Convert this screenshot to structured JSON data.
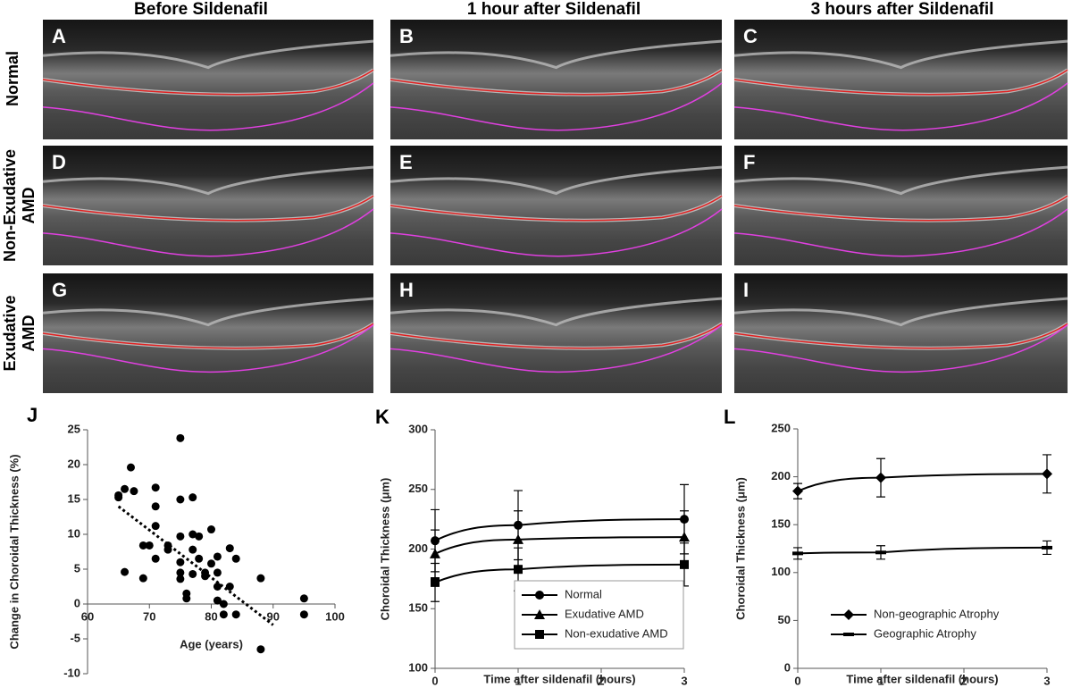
{
  "headers": [
    "Before Sildenafil",
    "1 hour after Sildenafil",
    "3 hours after Sildenafil"
  ],
  "rows": [
    [
      "Normal"
    ],
    [
      "Non-Exudative",
      "AMD"
    ],
    [
      "Exudative",
      "AMD"
    ]
  ],
  "panels": [
    "A",
    "B",
    "C",
    "D",
    "E",
    "F",
    "G",
    "H",
    "I"
  ],
  "chart_data": [
    {
      "type": "scatter",
      "panel": "J",
      "ylabel": "Change in Choroidal Thickness (%)",
      "xlabel": "Age (years)",
      "x": [
        65,
        65,
        66,
        67,
        67.5,
        66,
        69,
        69,
        70,
        71,
        71,
        71,
        71,
        73,
        73,
        75,
        75,
        75,
        75,
        75,
        75,
        76,
        76,
        77,
        77,
        77,
        77,
        78,
        78,
        79,
        80,
        80,
        81,
        81,
        81,
        81,
        82,
        82,
        83,
        83,
        84,
        84,
        88,
        88,
        95,
        95,
        79
      ],
      "values": [
        15.3,
        15.6,
        16.5,
        19.6,
        16.2,
        4.6,
        8.4,
        3.7,
        8.4,
        16.7,
        14,
        11.2,
        6.5,
        8.4,
        7.8,
        23.8,
        15,
        9.7,
        6,
        4.5,
        3.6,
        1.5,
        0.8,
        15.3,
        10,
        7.8,
        4.3,
        9.7,
        6.5,
        4.5,
        10.7,
        5.8,
        6.8,
        4.5,
        2.5,
        0.5,
        0,
        -1.5,
        8,
        2.5,
        6.5,
        -1.5,
        3.7,
        -6.5,
        0.8,
        -1.5,
        4
      ],
      "color": "#000000",
      "trendline": {
        "x": [
          65,
          90
        ],
        "values": [
          14,
          -3
        ]
      },
      "xlim": [
        60,
        100
      ],
      "xticks": [
        60,
        70,
        80,
        90,
        100
      ],
      "ylim": [
        -10,
        25
      ],
      "yticks": [
        -10,
        -5,
        0,
        5,
        10,
        15,
        20,
        25
      ]
    },
    {
      "type": "line",
      "panel": "K",
      "ylabel": "Choroidal Thickness (μm)",
      "xlabel": "Time after sildenafil (hours)",
      "x": [
        0,
        1,
        3
      ],
      "series": [
        {
          "name": "Normal",
          "marker": "circle",
          "color": "#000000",
          "values": [
            207,
            220,
            225
          ],
          "errors": [
            26,
            29,
            29
          ]
        },
        {
          "name": "Exudative AMD",
          "marker": "triangle",
          "color": "#000000",
          "values": [
            196,
            208,
            210
          ],
          "errors": [
            20,
            24,
            22
          ]
        },
        {
          "name": "Non-exudative AMD",
          "marker": "square",
          "color": "#000000",
          "values": [
            172,
            183,
            187
          ],
          "errors": [
            16,
            18,
            18
          ]
        }
      ],
      "xlim": [
        0,
        3
      ],
      "xticks": [
        0,
        1,
        2,
        3
      ],
      "ylim": [
        100,
        300
      ],
      "yticks": [
        100,
        150,
        200,
        250,
        300
      ],
      "legend": "lower right",
      "legend_frame": true
    },
    {
      "type": "line",
      "panel": "L",
      "ylabel": "Choroidal Thickness (μm)",
      "xlabel": "Time after sildenafil (hours)",
      "x": [
        0,
        1,
        3
      ],
      "series": [
        {
          "name": "Non-geographic Atrophy",
          "marker": "diamond",
          "color": "#000000",
          "values": [
            185,
            199,
            203
          ],
          "errors": [
            8,
            20,
            20
          ]
        },
        {
          "name": "Geographic Atrophy",
          "marker": "dash",
          "color": "#000000",
          "values": [
            120,
            121,
            126
          ],
          "errors": [
            6,
            7,
            7
          ]
        }
      ],
      "xlim": [
        0,
        3
      ],
      "xticks": [
        0,
        1,
        2,
        3
      ],
      "ylim": [
        0,
        250
      ],
      "yticks": [
        0,
        50,
        100,
        150,
        200,
        250
      ],
      "legend": "lower right",
      "legend_frame": false
    }
  ]
}
